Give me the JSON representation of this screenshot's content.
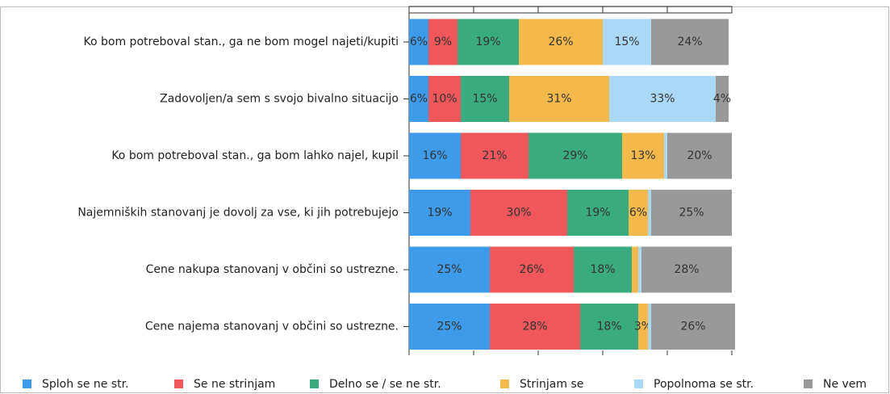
{
  "chart_data": {
    "type": "stacked-bar-horizontal",
    "categories": [
      "Ko bom potreboval stan., ga ne bom mogel najeti/kupiti",
      "Zadovoljen/a sem s svojo bivalno situacijo",
      "Ko bom potreboval stan., ga bom lahko najel, kupil",
      "Najemniških stanovanj je dovolj za vse, ki jih potrebujejo",
      "Cene nakupa stanovanj v občini so ustrezne.",
      "Cene najema stanovanj v občini so ustrezne."
    ],
    "series": [
      {
        "name": "Sploh se ne str.",
        "color": "#3d9be9",
        "values": [
          6,
          6,
          16,
          19,
          25,
          25
        ],
        "value_labels": [
          "6%",
          "6%",
          "16%",
          "19%",
          "25%",
          "25%"
        ]
      },
      {
        "name": "Se ne strinjam",
        "color": "#f0575a",
        "values": [
          9,
          10,
          21,
          30,
          26,
          28
        ],
        "value_labels": [
          "9%",
          "10%",
          "21%",
          "30%",
          "26%",
          "28%"
        ]
      },
      {
        "name": "Delno se / se ne str.",
        "color": "#3aab7f",
        "values": [
          19,
          15,
          29,
          19,
          18,
          18
        ],
        "value_labels": [
          "19%",
          "15%",
          "29%",
          "19%",
          "18%",
          "18%"
        ]
      },
      {
        "name": "Strinjam se",
        "color": "#f4b94c",
        "values": [
          26,
          31,
          13,
          6,
          2,
          3
        ],
        "value_labels": [
          "26%",
          "31%",
          "13%",
          "6%",
          null,
          "3%"
        ]
      },
      {
        "name": "Popolnoma se str.",
        "color": "#aad8f7",
        "values": [
          15,
          33,
          1,
          1,
          1,
          1
        ],
        "value_labels": [
          "15%",
          "33%",
          null,
          null,
          null,
          null
        ]
      },
      {
        "name": "Ne vem",
        "color": "#999999",
        "values": [
          24,
          4,
          20,
          25,
          28,
          26
        ],
        "value_labels": [
          "24%",
          "4%",
          "20%",
          "25%",
          "28%",
          "26%"
        ]
      }
    ],
    "xlim": [
      0,
      100
    ],
    "xticks": [
      0,
      20,
      40,
      60,
      80,
      100
    ]
  }
}
